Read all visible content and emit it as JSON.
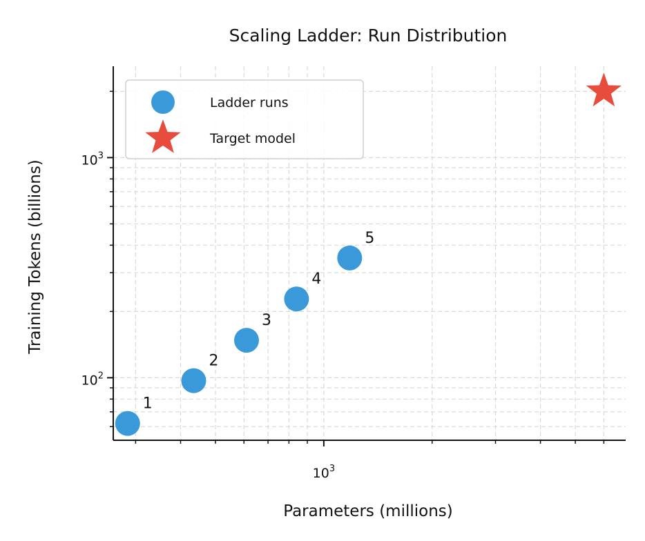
{
  "chart_data": {
    "type": "scatter",
    "title": "Scaling Ladder: Run Distribution",
    "xlabel": "Parameters (millions)",
    "ylabel": "Training Tokens (billions)",
    "x_scale": "log",
    "y_scale": "log",
    "xlim": [
      260,
      6900
    ],
    "ylim": [
      52,
      2600
    ],
    "grid": true,
    "legend_position": "upper-left",
    "x_major_ticks": [
      {
        "base": "10",
        "exp": "3",
        "value": 1000
      }
    ],
    "y_major_ticks": [
      {
        "base": "10",
        "exp": "2",
        "value": 100
      },
      {
        "base": "10",
        "exp": "3",
        "value": 1000
      }
    ],
    "series": [
      {
        "name": "Ladder runs",
        "marker": "circle",
        "color": "#3a9ad9",
        "points": [
          {
            "x": 285,
            "y": 62,
            "label": "1"
          },
          {
            "x": 435,
            "y": 97,
            "label": "2"
          },
          {
            "x": 610,
            "y": 148,
            "label": "3"
          },
          {
            "x": 840,
            "y": 228,
            "label": "4"
          },
          {
            "x": 1180,
            "y": 350,
            "label": "5"
          }
        ]
      },
      {
        "name": "Target model",
        "marker": "star",
        "color": "#e74c3c",
        "points": [
          {
            "x": 6000,
            "y": 2000
          }
        ]
      }
    ]
  }
}
